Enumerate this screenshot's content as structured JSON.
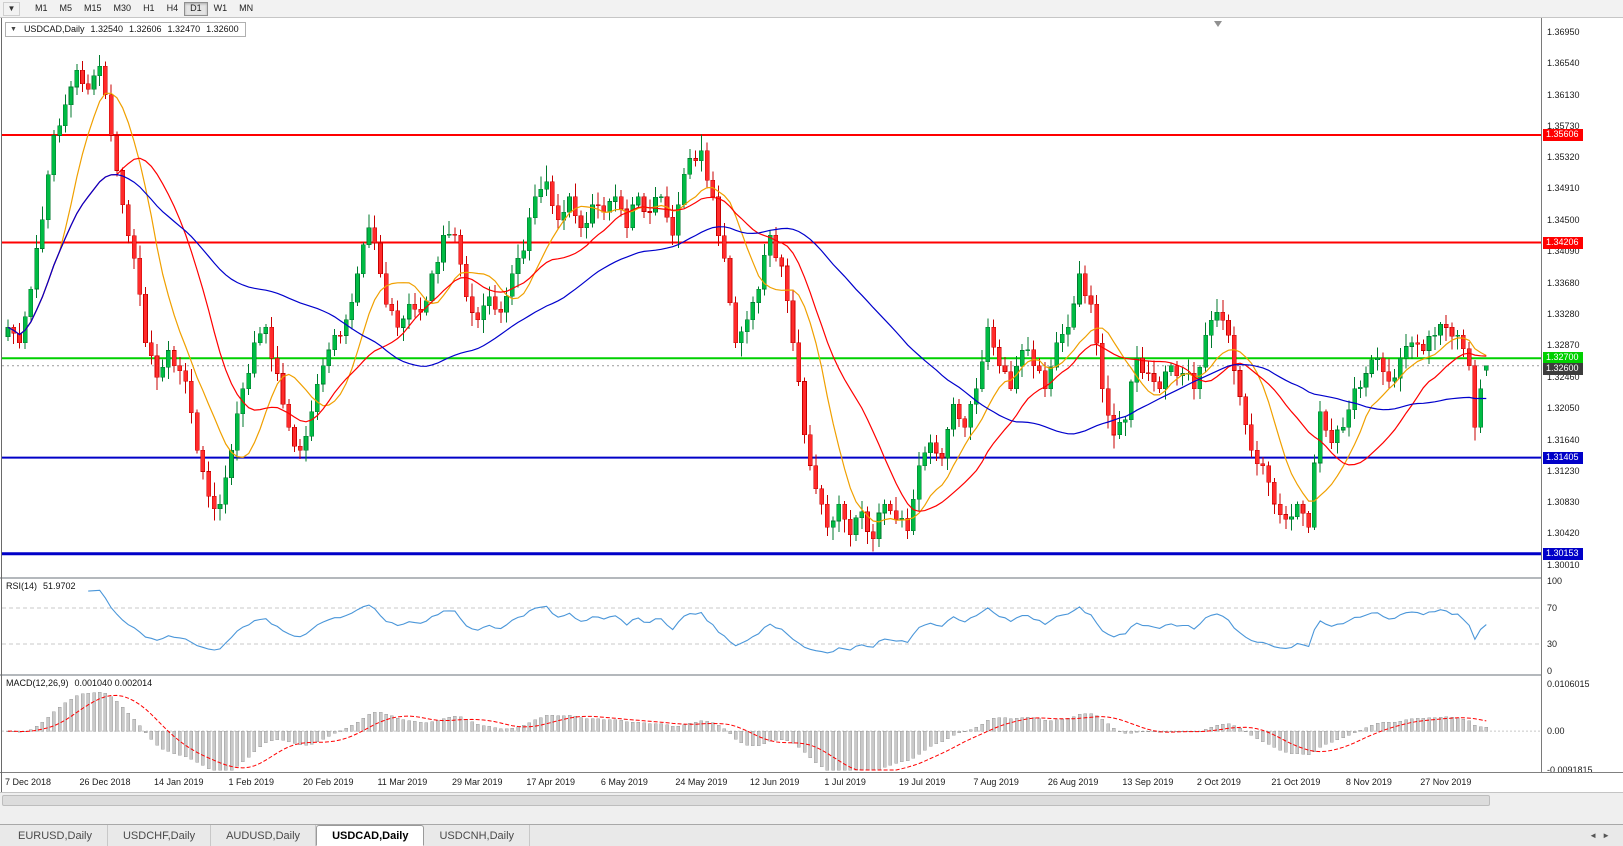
{
  "toolbar": {
    "dropdown_icon": "▼",
    "timeframes": [
      "M1",
      "M5",
      "M15",
      "M30",
      "H1",
      "H4",
      "D1",
      "W1",
      "MN"
    ],
    "active_timeframe": "D1"
  },
  "chart_header": {
    "collapse_icon": "▼",
    "symbol_label": "USDCAD,Daily",
    "open": "1.32540",
    "high": "1.32606",
    "low": "1.32470",
    "close": "1.32600"
  },
  "price_axis": {
    "ticks": [
      "1.36950",
      "1.36540",
      "1.36130",
      "1.35730",
      "1.35320",
      "1.34910",
      "1.34500",
      "1.34090",
      "1.33680",
      "1.33280",
      "1.32870",
      "1.32460",
      "1.32050",
      "1.31640",
      "1.31230",
      "1.30830",
      "1.30420",
      "1.30010"
    ]
  },
  "rsi": {
    "label": "RSI(14)",
    "value": "51.9702",
    "ticks": [
      "100",
      "70",
      "30",
      "0"
    ]
  },
  "macd": {
    "label": "MACD(12,26,9)",
    "values": "0.001040 0.002014",
    "ticks": [
      "0.0106015",
      "0.00",
      "-0.0091815"
    ]
  },
  "date_axis": {
    "labels": [
      {
        "text": "7 Dec 2018",
        "index": 0
      },
      {
        "text": "26 Dec 2018",
        "index": 13
      },
      {
        "text": "14 Jan 2019",
        "index": 26
      },
      {
        "text": "1 Feb 2019",
        "index": 39
      },
      {
        "text": "20 Feb 2019",
        "index": 52
      },
      {
        "text": "11 Mar 2019",
        "index": 65
      },
      {
        "text": "29 Mar 2019",
        "index": 78
      },
      {
        "text": "17 Apr 2019",
        "index": 91
      },
      {
        "text": "6 May 2019",
        "index": 104
      },
      {
        "text": "24 May 2019",
        "index": 117
      },
      {
        "text": "12 Jun 2019",
        "index": 130
      },
      {
        "text": "1 Jul 2019",
        "index": 143
      },
      {
        "text": "19 Jul 2019",
        "index": 156
      },
      {
        "text": "7 Aug 2019",
        "index": 169
      },
      {
        "text": "26 Aug 2019",
        "index": 182
      },
      {
        "text": "13 Sep 2019",
        "index": 195
      },
      {
        "text": "2 Oct 2019",
        "index": 208
      },
      {
        "text": "21 Oct 2019",
        "index": 221
      },
      {
        "text": "8 Nov 2019",
        "index": 234
      },
      {
        "text": "27 Nov 2019",
        "index": 247
      }
    ]
  },
  "tabs": [
    {
      "label": "EURUSD,Daily",
      "active": false
    },
    {
      "label": "USDCHF,Daily",
      "active": false
    },
    {
      "label": "AUDUSD,Daily",
      "active": false
    },
    {
      "label": "USDCAD,Daily",
      "active": true
    },
    {
      "label": "USDCNH,Daily",
      "active": false
    }
  ],
  "tabbar": {
    "left_arrow": "◄",
    "right_arrow": "►"
  },
  "chart_data": {
    "type": "candlestick",
    "symbol": "USDCAD",
    "timeframe": "Daily",
    "candles_count": 259,
    "price_range": {
      "min": 1.2985,
      "max": 1.3713
    },
    "current_price": 1.326,
    "last_candle": {
      "open": 1.3254,
      "high": 1.32606,
      "low": 1.3247,
      "close": 1.326
    },
    "levels": [
      {
        "price": 1.35606,
        "label": "1.35606",
        "color": "#FF0000",
        "width": 2
      },
      {
        "price": 1.34206,
        "label": "1.34206",
        "color": "#FF0000",
        "width": 2
      },
      {
        "price": 1.327,
        "label": "1.32700",
        "color": "#00D000",
        "width": 2
      },
      {
        "price": 1.31405,
        "label": "1.31405",
        "color": "#0000C8",
        "width": 2
      },
      {
        "price": 1.30153,
        "label": "1.30153",
        "color": "#0000C8",
        "width": 3
      }
    ],
    "moving_averages": [
      {
        "period": 10,
        "color": "#F0A000"
      },
      {
        "period": 20,
        "color": "#FF0000"
      },
      {
        "period": 50,
        "color": "#0000CC"
      }
    ],
    "rsi": {
      "period": 14,
      "current": 51.9702,
      "color": "#4A96D9",
      "levels": [
        70,
        30
      ]
    },
    "macd": {
      "fast": 12,
      "slow": 26,
      "signal_period": 9,
      "current_main": 0.00104,
      "current_signal": 0.002014,
      "axis_top": 0.0124,
      "axis_bottom": -0.0092
    },
    "colors": {
      "bull": "#00BB44",
      "bull_border": "#007A2E",
      "bear": "#FF2B2B",
      "bear_border": "#C80000"
    },
    "close_path_anchors": [
      [
        0,
        1.331
      ],
      [
        2,
        1.329
      ],
      [
        4,
        1.336
      ],
      [
        6,
        1.345
      ],
      [
        8,
        1.356
      ],
      [
        10,
        1.36
      ],
      [
        12,
        1.3645
      ],
      [
        14,
        1.362
      ],
      [
        16,
        1.365
      ],
      [
        18,
        1.356
      ],
      [
        20,
        1.347
      ],
      [
        22,
        1.34
      ],
      [
        24,
        1.329
      ],
      [
        26,
        1.3245
      ],
      [
        28,
        1.328
      ],
      [
        31,
        1.324
      ],
      [
        33,
        1.315
      ],
      [
        35,
        1.309
      ],
      [
        37,
        1.308
      ],
      [
        39,
        1.315
      ],
      [
        41,
        1.323
      ],
      [
        43,
        1.329
      ],
      [
        45,
        1.331
      ],
      [
        47,
        1.325
      ],
      [
        49,
        1.318
      ],
      [
        51,
        1.315
      ],
      [
        53,
        1.32
      ],
      [
        55,
        1.326
      ],
      [
        57,
        1.33
      ],
      [
        59,
        1.332
      ],
      [
        61,
        1.338
      ],
      [
        63,
        1.344
      ],
      [
        64,
        1.342
      ],
      [
        66,
        1.334
      ],
      [
        68,
        1.331
      ],
      [
        70,
        1.334
      ],
      [
        72,
        1.333
      ],
      [
        74,
        1.338
      ],
      [
        76,
        1.343
      ],
      [
        78,
        1.343
      ],
      [
        80,
        1.335
      ],
      [
        82,
        1.332
      ],
      [
        84,
        1.335
      ],
      [
        86,
        1.333
      ],
      [
        88,
        1.338
      ],
      [
        90,
        1.341
      ],
      [
        92,
        1.348
      ],
      [
        94,
        1.35
      ],
      [
        96,
        1.345
      ],
      [
        98,
        1.348
      ],
      [
        100,
        1.344
      ],
      [
        102,
        1.347
      ],
      [
        104,
        1.346
      ],
      [
        106,
        1.348
      ],
      [
        108,
        1.344
      ],
      [
        110,
        1.348
      ],
      [
        112,
        1.346
      ],
      [
        114,
        1.348
      ],
      [
        116,
        1.343
      ],
      [
        117,
        1.347
      ],
      [
        119,
        1.353
      ],
      [
        121,
        1.354
      ],
      [
        123,
        1.348
      ],
      [
        125,
        1.34
      ],
      [
        127,
        1.329
      ],
      [
        129,
        1.332
      ],
      [
        131,
        1.336
      ],
      [
        133,
        1.343
      ],
      [
        135,
        1.339
      ],
      [
        137,
        1.329
      ],
      [
        139,
        1.317
      ],
      [
        141,
        1.31
      ],
      [
        143,
        1.305
      ],
      [
        145,
        1.308
      ],
      [
        147,
        1.304
      ],
      [
        149,
        1.307
      ],
      [
        151,
        1.3035
      ],
      [
        153,
        1.308
      ],
      [
        155,
        1.306
      ],
      [
        157,
        1.3045
      ],
      [
        159,
        1.313
      ],
      [
        161,
        1.316
      ],
      [
        163,
        1.314
      ],
      [
        165,
        1.321
      ],
      [
        167,
        1.318
      ],
      [
        169,
        1.323
      ],
      [
        171,
        1.331
      ],
      [
        173,
        1.326
      ],
      [
        175,
        1.323
      ],
      [
        177,
        1.328
      ],
      [
        179,
        1.326
      ],
      [
        181,
        1.323
      ],
      [
        183,
        1.329
      ],
      [
        185,
        1.331
      ],
      [
        187,
        1.338
      ],
      [
        189,
        1.334
      ],
      [
        191,
        1.323
      ],
      [
        193,
        1.317
      ],
      [
        195,
        1.319
      ],
      [
        197,
        1.327
      ],
      [
        199,
        1.325
      ],
      [
        201,
        1.323
      ],
      [
        203,
        1.326
      ],
      [
        205,
        1.325
      ],
      [
        207,
        1.323
      ],
      [
        209,
        1.33
      ],
      [
        211,
        1.333
      ],
      [
        213,
        1.33
      ],
      [
        215,
        1.322
      ],
      [
        217,
        1.315
      ],
      [
        219,
        1.313
      ],
      [
        221,
        1.308
      ],
      [
        223,
        1.306
      ],
      [
        225,
        1.308
      ],
      [
        227,
        1.305
      ],
      [
        229,
        1.32
      ],
      [
        231,
        1.316
      ],
      [
        233,
        1.318
      ],
      [
        235,
        1.323
      ],
      [
        237,
        1.325
      ],
      [
        239,
        1.327
      ],
      [
        241,
        1.324
      ],
      [
        243,
        1.327
      ],
      [
        245,
        1.329
      ],
      [
        247,
        1.328
      ],
      [
        249,
        1.33
      ],
      [
        251,
        1.331
      ],
      [
        253,
        1.33
      ],
      [
        255,
        1.326
      ],
      [
        256,
        1.318
      ],
      [
        257,
        1.323
      ],
      [
        258,
        1.326
      ]
    ],
    "wick_extremes": [
      {
        "index": 16,
        "high": 1.3665
      },
      {
        "index": 37,
        "low": 1.3068
      },
      {
        "index": 94,
        "high": 1.3521
      },
      {
        "index": 121,
        "high": 1.3561
      },
      {
        "index": 147,
        "low": 1.3025
      },
      {
        "index": 151,
        "low": 1.3018
      },
      {
        "index": 187,
        "high": 1.3383
      },
      {
        "index": 211,
        "high": 1.3347
      },
      {
        "index": 227,
        "low": 1.3042
      },
      {
        "index": 256,
        "low": 1.3175
      }
    ]
  }
}
